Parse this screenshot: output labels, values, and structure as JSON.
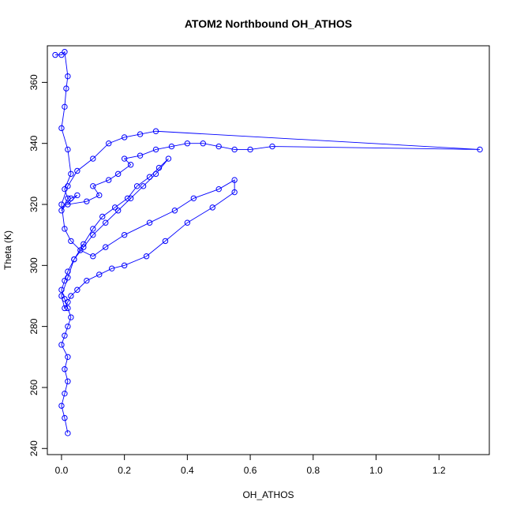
{
  "chart_data": {
    "type": "scatter",
    "title": "ATOM2 Northbound OH_ATHOS",
    "xlabel": "OH_ATHOS",
    "ylabel": "Theta (K)",
    "xlim": [
      -0.045,
      1.36
    ],
    "ylim": [
      238,
      372
    ],
    "xticks": [
      0.0,
      0.2,
      0.4,
      0.6,
      0.8,
      1.0,
      1.2
    ],
    "yticks": [
      240,
      260,
      280,
      300,
      320,
      340,
      360
    ],
    "grid": false,
    "legend": "none",
    "series_color": "#0000ff",
    "point_style": "open-circle",
    "series": [
      {
        "x": [
          -0.02,
          0.0,
          0.01,
          0.02,
          0.015,
          0.01,
          0.0,
          0.02,
          0.03,
          0.01,
          0.02,
          0.0,
          0.03,
          0.05,
          0.02,
          0.08,
          0.12,
          0.1,
          0.15,
          0.18,
          0.22,
          0.2,
          0.25,
          0.3,
          0.35,
          0.4,
          0.45,
          0.5,
          0.55,
          0.6,
          0.67,
          1.33,
          0.3,
          0.25,
          0.2,
          0.15,
          0.1,
          0.05,
          0.02,
          0.0,
          0.01,
          0.03,
          0.06,
          0.1,
          0.14,
          0.2,
          0.28,
          0.36,
          0.42,
          0.5,
          0.55,
          0.55,
          0.48,
          0.4,
          0.33,
          0.27,
          0.2,
          0.16,
          0.12,
          0.08,
          0.05,
          0.03,
          0.02,
          0.01,
          0.0,
          0.02,
          0.04,
          0.07,
          0.1,
          0.13,
          0.17,
          0.21,
          0.24,
          0.28,
          0.31,
          0.34,
          0.3,
          0.26,
          0.22,
          0.18,
          0.14,
          0.1,
          0.07,
          0.04,
          0.02,
          0.01,
          0.0,
          0.01,
          0.02,
          0.03,
          0.02,
          0.01,
          0.0,
          0.02,
          0.01,
          0.02,
          0.01,
          0.0,
          0.01,
          0.02
        ],
        "y": [
          369,
          369,
          370,
          362,
          358,
          352,
          345,
          338,
          330,
          325,
          322,
          318,
          322,
          323,
          320,
          321,
          323,
          326,
          328,
          330,
          333,
          335,
          336,
          338,
          339,
          340,
          340,
          339,
          338,
          338,
          339,
          338,
          344,
          343,
          342,
          340,
          335,
          331,
          326,
          320,
          312,
          308,
          305,
          303,
          306,
          310,
          314,
          318,
          322,
          325,
          328,
          324,
          319,
          314,
          308,
          303,
          300,
          299,
          297,
          295,
          292,
          290,
          288,
          286,
          290,
          296,
          302,
          307,
          312,
          316,
          319,
          322,
          326,
          329,
          332,
          335,
          330,
          326,
          322,
          318,
          314,
          310,
          306,
          302,
          298,
          295,
          292,
          289,
          286,
          283,
          280,
          277,
          274,
          270,
          266,
          262,
          258,
          254,
          250,
          245
        ]
      }
    ]
  }
}
